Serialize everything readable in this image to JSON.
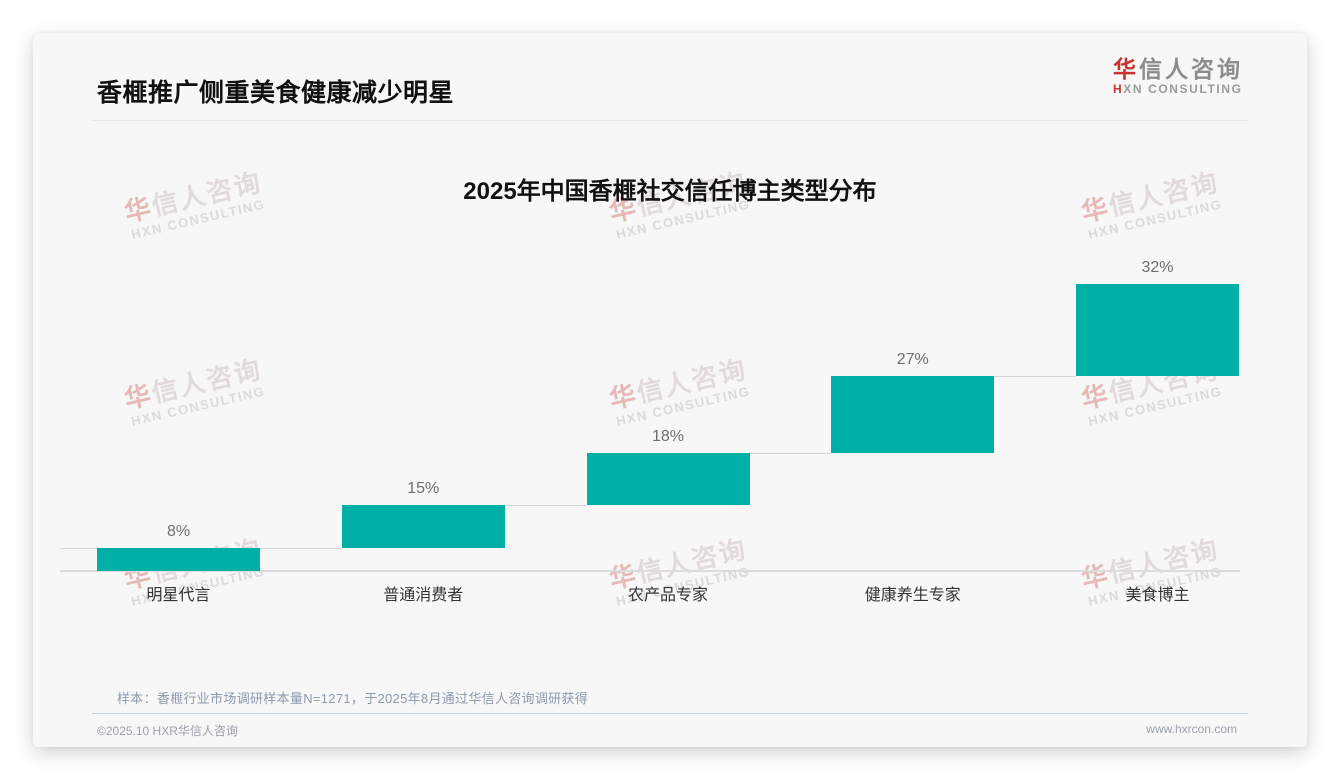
{
  "page": {
    "header": {
      "title": "香榧推广侧重美食健康减少明星"
    },
    "logo": {
      "zh_accent": "华",
      "zh_rest": "信人咨询",
      "en_accent": "H",
      "en_rest": "XN CONSULTING"
    },
    "watermark": {
      "zh_accent": "华",
      "zh_rest": "信人咨询",
      "en": "HXN CONSULTING"
    },
    "footnote": "样本：香榧行业市场调研样本量N=1271，于2025年8月通过华信人咨询调研获得",
    "footer": {
      "left": "©2025.10 HXR华信人咨询",
      "right": "www.hxrcon.com"
    }
  },
  "chart_data": {
    "type": "bar",
    "subtype": "waterfall",
    "title": "2025年中国香榧社交信任博主类型分布",
    "categories": [
      "明星代言",
      "普通消费者",
      "农产品专家",
      "健康养生专家",
      "美食博主"
    ],
    "values": [
      8,
      15,
      18,
      27,
      32
    ],
    "value_labels": [
      "8%",
      "15%",
      "18%",
      "27%",
      "32%"
    ],
    "cumulative": [
      8,
      23,
      41,
      68,
      100
    ],
    "unit": "%",
    "ylim": [
      0,
      100
    ],
    "grid": "off",
    "legend": "none",
    "value_label_position": "above-bar",
    "bar_color": "#00b0a6",
    "connector_style": "thin-gray-step-lines",
    "xlabel": "",
    "ylabel": ""
  }
}
